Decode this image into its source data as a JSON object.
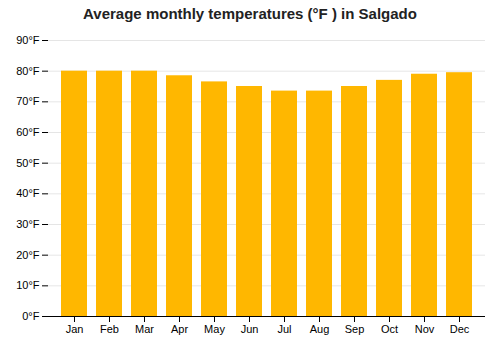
{
  "chart_data": {
    "type": "bar",
    "title": "Average monthly temperatures (°F ) in Salgado",
    "categories": [
      "Jan",
      "Feb",
      "Mar",
      "Apr",
      "May",
      "Jun",
      "Jul",
      "Aug",
      "Sep",
      "Oct",
      "Nov",
      "Dec"
    ],
    "values": [
      80.0,
      80.0,
      80.0,
      78.5,
      76.5,
      75.0,
      73.5,
      73.5,
      75.0,
      77.0,
      79.0,
      79.5
    ],
    "color": "#FFB700",
    "ylim": [
      0,
      90
    ],
    "yticks": [
      {
        "value": 0,
        "label": "0°F"
      },
      {
        "value": 10,
        "label": "10°F"
      },
      {
        "value": 20,
        "label": "20°F"
      },
      {
        "value": 30,
        "label": "30°F"
      },
      {
        "value": 40,
        "label": "40°F"
      },
      {
        "value": 50,
        "label": "50°F"
      },
      {
        "value": 60,
        "label": "60°F"
      },
      {
        "value": 70,
        "label": "70°F"
      },
      {
        "value": 80,
        "label": "80°F"
      },
      {
        "value": 90,
        "label": "90°F"
      }
    ],
    "grid": true
  }
}
